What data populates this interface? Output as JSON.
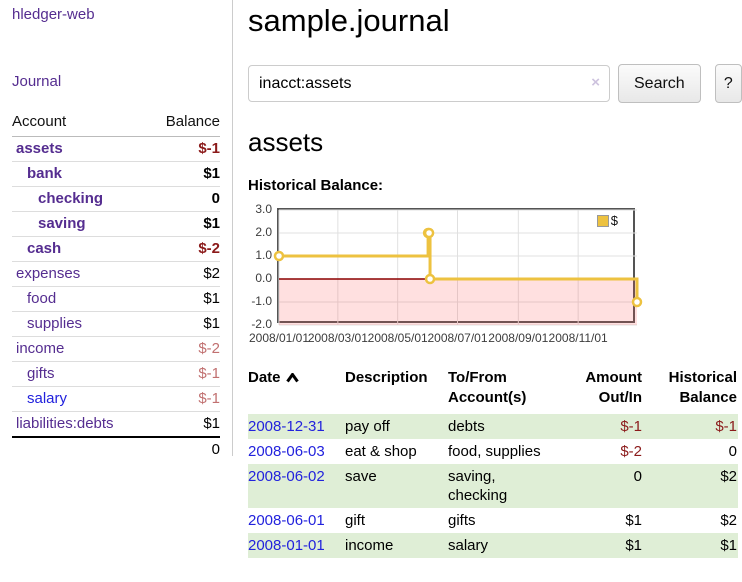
{
  "colors": {
    "accent_purple": "#552d90",
    "link_blue": "#2222dd",
    "negative_strong": "#8b1a1a",
    "negative_soft": "#c17070",
    "row_stripe_green": "#dfeed6",
    "chart_gold": "#edc240",
    "chart_zero_line": "#8b0000",
    "chart_negative_fill": "#fbdada"
  },
  "sidebar": {
    "brand": "hledger-web",
    "journal_link": "Journal",
    "accounts_table": {
      "headers": {
        "account": "Account",
        "balance": "Balance"
      },
      "rows": [
        {
          "name": "assets",
          "depth": 1,
          "bold": true,
          "balance": "$-1",
          "neg": "strong"
        },
        {
          "name": "bank",
          "depth": 2,
          "bold": true,
          "balance": "$1",
          "neg": "none"
        },
        {
          "name": "checking",
          "depth": 3,
          "bold": true,
          "balance": "0",
          "neg": "none"
        },
        {
          "name": "saving",
          "depth": 3,
          "bold": true,
          "balance": "$1",
          "neg": "none"
        },
        {
          "name": "cash",
          "depth": 2,
          "bold": true,
          "balance": "$-2",
          "neg": "strong"
        },
        {
          "name": "expenses",
          "depth": 1,
          "bold": false,
          "balance": "$2",
          "neg": "none"
        },
        {
          "name": "food",
          "depth": 2,
          "bold": false,
          "balance": "$1",
          "neg": "none"
        },
        {
          "name": "supplies",
          "depth": 2,
          "bold": false,
          "balance": "$1",
          "neg": "none"
        },
        {
          "name": "income",
          "depth": 1,
          "bold": false,
          "balance": "$-2",
          "neg": "soft"
        },
        {
          "name": "gifts",
          "depth": 2,
          "bold": false,
          "balance": "$-1",
          "neg": "soft"
        },
        {
          "name": "salary",
          "depth": 2,
          "bold": false,
          "balance": "$-1",
          "neg": "soft",
          "link_style": "unvisited"
        },
        {
          "name": "liabilities:debts",
          "depth": 1,
          "bold": false,
          "balance": "$1",
          "neg": "none"
        }
      ],
      "total": "0"
    }
  },
  "main": {
    "title": "sample.journal",
    "search": {
      "value": "inacct:assets",
      "clear_icon": "×",
      "search_button": "Search",
      "help_button": "?"
    },
    "account_heading": "assets",
    "chart_label": "Historical Balance:"
  },
  "chart_data": {
    "type": "line",
    "title": "Historical Balance",
    "x_range": [
      "2008-01-01",
      "2008-12-31"
    ],
    "y_range": [
      -2,
      3
    ],
    "x_tick_labels": [
      "2008/01/01",
      "2008/03/01",
      "2008/05/01",
      "2008/07/01",
      "2008/09/01",
      "2008/11/01"
    ],
    "y_tick_labels": [
      "3.0",
      "2.0",
      "1.0",
      "0.0",
      "-1.0",
      "-2.0"
    ],
    "series": [
      {
        "name": "$",
        "color": "#edc240",
        "step": true,
        "points": [
          [
            "2008-01-01",
            1
          ],
          [
            "2008-06-01",
            2
          ],
          [
            "2008-06-02",
            2
          ],
          [
            "2008-06-03",
            0
          ],
          [
            "2008-12-31",
            -1
          ]
        ]
      }
    ],
    "legend": {
      "position": "top-right",
      "label": "$"
    },
    "grid": true,
    "negative_region_fill": "#fbdada",
    "zero_line_color": "#8b0000"
  },
  "register": {
    "headers": [
      {
        "label": "Date",
        "sort": true,
        "align": "left"
      },
      {
        "label": "Description",
        "align": "left"
      },
      {
        "label": "To/From\nAccount(s)",
        "align": "left"
      },
      {
        "label": "Amount\nOut/In",
        "align": "right"
      },
      {
        "label": "Historical\nBalance",
        "align": "right"
      }
    ],
    "rows": [
      {
        "date": "2008-12-31",
        "description": "pay off",
        "accounts": "debts",
        "amount": "$-1",
        "amount_negative": true,
        "balance": "$-1",
        "balance_negative": true,
        "shaded": true
      },
      {
        "date": "2008-06-03",
        "description": "eat & shop",
        "accounts": "food, supplies",
        "amount": "$-2",
        "amount_negative": true,
        "balance": "0",
        "balance_negative": false,
        "shaded": false
      },
      {
        "date": "2008-06-02",
        "description": "save",
        "accounts": "saving,\nchecking",
        "amount": "0",
        "amount_negative": false,
        "balance": "$2",
        "balance_negative": false,
        "shaded": true
      },
      {
        "date": "2008-06-01",
        "description": "gift",
        "accounts": "gifts",
        "amount": "$1",
        "amount_negative": false,
        "balance": "$2",
        "balance_negative": false,
        "shaded": false
      },
      {
        "date": "2008-01-01",
        "description": "income",
        "accounts": "salary",
        "amount": "$1",
        "amount_negative": false,
        "balance": "$1",
        "balance_negative": false,
        "shaded": true
      }
    ]
  }
}
